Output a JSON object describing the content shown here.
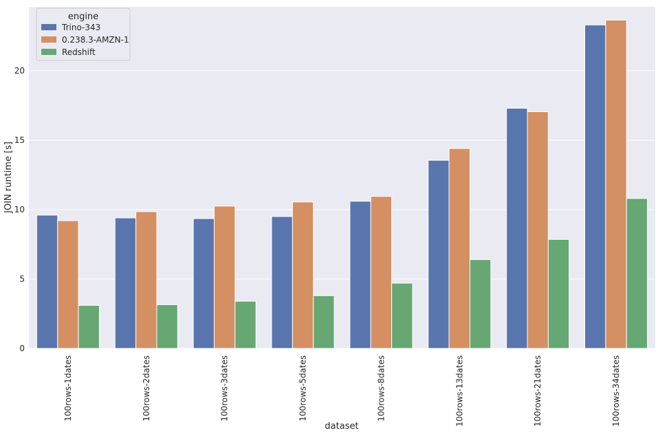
{
  "chart_data": {
    "type": "bar",
    "xlabel": "dataset",
    "ylabel": "JOIN runtime [s]",
    "ylim": [
      0,
      24.6
    ],
    "yticks": [
      0,
      5,
      10,
      15,
      20
    ],
    "grid": true,
    "legend": {
      "title": "engine",
      "placement": "top-left"
    },
    "categories": [
      "100rows-1dates",
      "100rows-2dates",
      "100rows-3dates",
      "100rows-5dates",
      "100rows-8dates",
      "100rows-13dates",
      "100rows-21dates",
      "100rows-34dates"
    ],
    "series": [
      {
        "name": "Trino-343",
        "color": "#5975ad",
        "values": [
          9.6,
          9.4,
          9.35,
          9.5,
          10.6,
          13.55,
          17.3,
          23.3
        ]
      },
      {
        "name": "0.238.3-AMZN-1",
        "color": "#d48f63",
        "values": [
          9.2,
          9.85,
          10.25,
          10.55,
          10.95,
          14.4,
          17.05,
          23.65
        ]
      },
      {
        "name": "Redshift",
        "color": "#66a773",
        "values": [
          3.1,
          3.15,
          3.4,
          3.8,
          4.7,
          6.4,
          7.85,
          10.8
        ]
      }
    ]
  },
  "colors": {
    "plot_background": "#eaeaf2",
    "grid": "#ffffff"
  }
}
